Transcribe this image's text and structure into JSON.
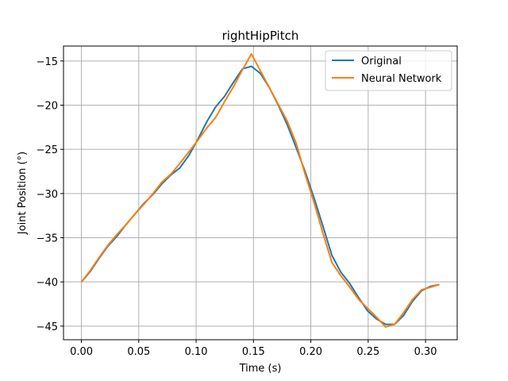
{
  "chart_data": {
    "type": "line",
    "title": "rightHipPitch",
    "xlabel": "Time (s)",
    "ylabel": "Joint Position (°)",
    "xlim": [
      -0.0156,
      0.3276
    ],
    "ylim": [
      -46.54,
      -13.31
    ],
    "grid": true,
    "legend_position": "upper right",
    "x_ticks": [
      0.0,
      0.05,
      0.1,
      0.15,
      0.2,
      0.25,
      0.3
    ],
    "x_tick_labels": [
      "0.00",
      "0.05",
      "0.10",
      "0.15",
      "0.20",
      "0.25",
      "0.30"
    ],
    "y_ticks": [
      -15,
      -20,
      -25,
      -30,
      -35,
      -40,
      -45
    ],
    "y_tick_labels": [
      "−15",
      "−20",
      "−25",
      "−30",
      "−35",
      "−40",
      "−45"
    ],
    "series": [
      {
        "name": "Original",
        "color": "#1f77b4",
        "x": [
          0.0,
          0.0078,
          0.0156,
          0.0234,
          0.0312,
          0.039,
          0.0468,
          0.0546,
          0.0624,
          0.0702,
          0.078,
          0.0858,
          0.0936,
          0.1014,
          0.1092,
          0.117,
          0.1248,
          0.1326,
          0.1404,
          0.1482,
          0.156,
          0.1638,
          0.1716,
          0.1794,
          0.1872,
          0.195,
          0.2028,
          0.2106,
          0.2184,
          0.2262,
          0.234,
          0.2418,
          0.2496,
          0.2574,
          0.2652,
          0.273,
          0.2808,
          0.2886,
          0.2964,
          0.3042,
          0.312
        ],
        "y": [
          -40.0,
          -38.8,
          -37.3,
          -35.9,
          -34.8,
          -33.5,
          -32.3,
          -31.1,
          -30.1,
          -28.9,
          -27.9,
          -27.1,
          -25.7,
          -23.9,
          -21.9,
          -20.2,
          -19.0,
          -17.4,
          -15.9,
          -15.6,
          -16.4,
          -18.0,
          -20.0,
          -22.2,
          -24.8,
          -27.5,
          -30.5,
          -33.7,
          -37.0,
          -38.9,
          -40.2,
          -41.8,
          -43.3,
          -44.2,
          -44.8,
          -44.8,
          -43.8,
          -42.2,
          -41.0,
          -40.5,
          -40.3
        ]
      },
      {
        "name": "Neural Network",
        "color": "#ff7f0e",
        "x": [
          0.0,
          0.0078,
          0.0156,
          0.0234,
          0.0312,
          0.039,
          0.0468,
          0.0546,
          0.0624,
          0.0702,
          0.078,
          0.0858,
          0.0936,
          0.1014,
          0.1092,
          0.117,
          0.1248,
          0.1326,
          0.1404,
          0.1482,
          0.156,
          0.1638,
          0.1716,
          0.1794,
          0.1872,
          0.195,
          0.2028,
          0.2106,
          0.2184,
          0.2262,
          0.234,
          0.2418,
          0.2496,
          0.2574,
          0.2652,
          0.273,
          0.2808,
          0.2886,
          0.2964,
          0.3042,
          0.312
        ],
        "y": [
          -40.0,
          -38.7,
          -37.2,
          -35.8,
          -34.6,
          -33.5,
          -32.3,
          -31.2,
          -30.0,
          -28.7,
          -27.8,
          -26.6,
          -25.3,
          -24.0,
          -22.6,
          -21.4,
          -19.6,
          -17.9,
          -16.0,
          -14.2,
          -16.1,
          -18.0,
          -19.9,
          -21.8,
          -24.3,
          -27.8,
          -31.0,
          -34.5,
          -37.8,
          -39.3,
          -40.6,
          -42.0,
          -43.0,
          -44.0,
          -45.1,
          -44.8,
          -43.5,
          -42.0,
          -40.9,
          -40.6,
          -40.3
        ]
      }
    ]
  }
}
